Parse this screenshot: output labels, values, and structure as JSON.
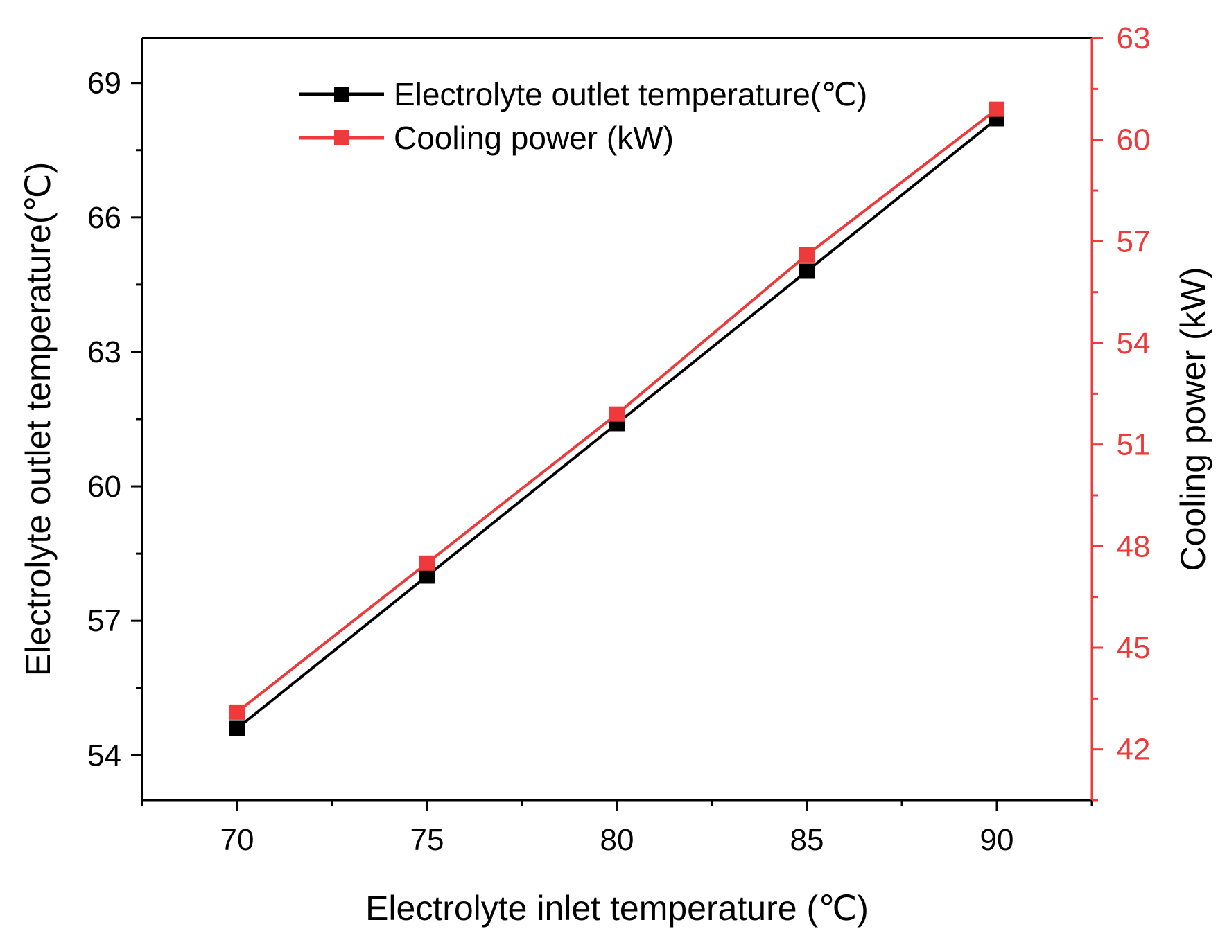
{
  "chart_data": {
    "type": "line",
    "x": [
      70,
      75,
      80,
      85,
      90
    ],
    "xlim": [
      67.5,
      92.5
    ],
    "xticks": [
      70,
      75,
      80,
      85,
      90
    ],
    "xlabel": "Electrolyte inlet temperature (℃)",
    "ylabel": "Electrolyte outlet temperature(℃)",
    "ylim": [
      53,
      70
    ],
    "yticks": [
      54,
      57,
      60,
      63,
      66,
      69
    ],
    "y2label": "Cooling power (kW)",
    "y2lim": [
      40.5,
      63
    ],
    "y2ticks": [
      42,
      45,
      48,
      51,
      54,
      57,
      60,
      63
    ],
    "series": [
      {
        "name": "Electrolyte outlet temperature(℃)",
        "axis": "left",
        "color": "#000000",
        "values": [
          54.6,
          58.0,
          61.4,
          64.8,
          68.2
        ]
      },
      {
        "name": "Cooling power (kW)",
        "axis": "right",
        "color": "#ee3a3a",
        "values": [
          43.1,
          47.5,
          51.9,
          56.6,
          60.9
        ]
      }
    ],
    "legend": "top-left"
  }
}
